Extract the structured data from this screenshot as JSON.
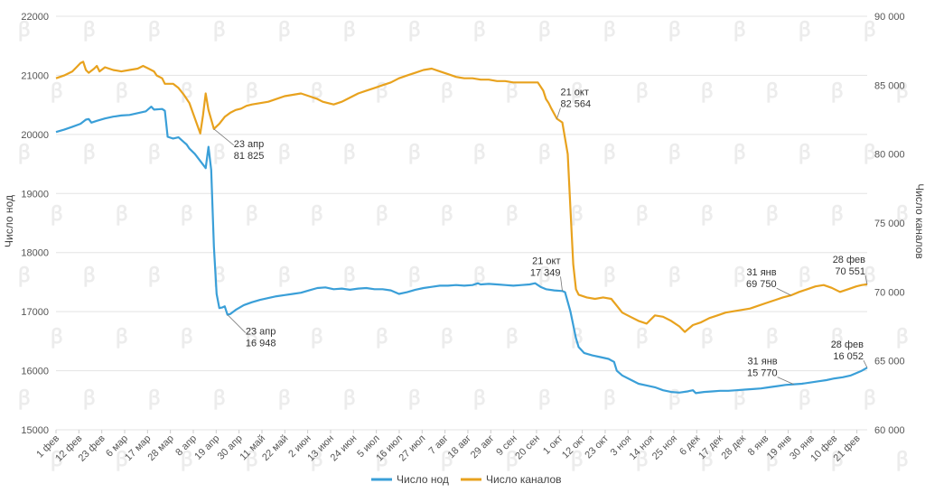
{
  "chart_data": {
    "type": "line",
    "title": "",
    "left_axis_label": "Число нод",
    "right_axis_label": "Число каналов",
    "left_ylim": [
      15000,
      22000
    ],
    "left_ticks": [
      "15000",
      "16000",
      "17000",
      "18000",
      "19000",
      "20000",
      "21000",
      "22000"
    ],
    "right_ylim": [
      60000,
      90000
    ],
    "right_ticks": [
      "60 000",
      "65 000",
      "70 000",
      "75 000",
      "80 000",
      "85 000",
      "90 000"
    ],
    "x_ticks": [
      "1 фев",
      "12 фев",
      "23 фев",
      "6 мар",
      "17 мар",
      "28 мар",
      "8 апр",
      "19 апр",
      "30 апр",
      "11 май",
      "22 май",
      "2 июн",
      "13 июн",
      "24 июн",
      "5 июл",
      "16 июл",
      "27 июл",
      "7 авг",
      "18 авг",
      "29 авг",
      "9 сен",
      "20 сен",
      "1 окт",
      "12 окт",
      "23 окт",
      "3 ноя",
      "14 ноя",
      "25 ноя",
      "6 дек",
      "17 дек",
      "28 дек",
      "8 янв",
      "19 янв",
      "30 янв",
      "10 фев",
      "21 фев"
    ],
    "grid": true,
    "legend_position": "bottom",
    "series": [
      {
        "name": "Число нод",
        "axis": "left",
        "color": "#3a9fd8",
        "points": [
          [
            0,
            20040
          ],
          [
            3,
            20080
          ],
          [
            6,
            20130
          ],
          [
            9,
            20180
          ],
          [
            11,
            20250
          ],
          [
            12,
            20260
          ],
          [
            13,
            20200
          ],
          [
            15,
            20230
          ],
          [
            18,
            20270
          ],
          [
            21,
            20300
          ],
          [
            24,
            20320
          ],
          [
            27,
            20330
          ],
          [
            30,
            20360
          ],
          [
            33,
            20390
          ],
          [
            35,
            20470
          ],
          [
            36,
            20420
          ],
          [
            39,
            20430
          ],
          [
            40,
            20400
          ],
          [
            41,
            19960
          ],
          [
            43,
            19930
          ],
          [
            45,
            19950
          ],
          [
            47,
            19870
          ],
          [
            48,
            19830
          ],
          [
            49,
            19760
          ],
          [
            51,
            19670
          ],
          [
            53,
            19550
          ],
          [
            55,
            19430
          ],
          [
            56,
            19790
          ],
          [
            57,
            19400
          ],
          [
            58,
            18100
          ],
          [
            59,
            17300
          ],
          [
            60,
            17060
          ],
          [
            61,
            17070
          ],
          [
            62,
            17090
          ],
          [
            63,
            16948
          ],
          [
            64,
            16960
          ],
          [
            66,
            17030
          ],
          [
            69,
            17110
          ],
          [
            72,
            17160
          ],
          [
            75,
            17200
          ],
          [
            78,
            17230
          ],
          [
            81,
            17260
          ],
          [
            84,
            17280
          ],
          [
            87,
            17300
          ],
          [
            90,
            17320
          ],
          [
            93,
            17360
          ],
          [
            96,
            17400
          ],
          [
            99,
            17410
          ],
          [
            102,
            17380
          ],
          [
            105,
            17390
          ],
          [
            108,
            17370
          ],
          [
            111,
            17390
          ],
          [
            114,
            17400
          ],
          [
            117,
            17380
          ],
          [
            120,
            17380
          ],
          [
            123,
            17360
          ],
          [
            126,
            17300
          ],
          [
            129,
            17330
          ],
          [
            132,
            17370
          ],
          [
            135,
            17400
          ],
          [
            138,
            17420
          ],
          [
            141,
            17440
          ],
          [
            144,
            17440
          ],
          [
            147,
            17450
          ],
          [
            150,
            17440
          ],
          [
            153,
            17450
          ],
          [
            155,
            17480
          ],
          [
            156,
            17460
          ],
          [
            159,
            17470
          ],
          [
            162,
            17460
          ],
          [
            165,
            17450
          ],
          [
            168,
            17440
          ],
          [
            171,
            17450
          ],
          [
            174,
            17460
          ],
          [
            176,
            17480
          ],
          [
            178,
            17420
          ],
          [
            180,
            17380
          ],
          [
            183,
            17360
          ],
          [
            186,
            17349
          ],
          [
            187,
            17330
          ],
          [
            189,
            17000
          ],
          [
            191,
            16550
          ],
          [
            192,
            16400
          ],
          [
            194,
            16300
          ],
          [
            197,
            16260
          ],
          [
            200,
            16230
          ],
          [
            203,
            16200
          ],
          [
            205,
            16150
          ],
          [
            206,
            16000
          ],
          [
            208,
            15920
          ],
          [
            211,
            15850
          ],
          [
            214,
            15780
          ],
          [
            217,
            15750
          ],
          [
            220,
            15720
          ],
          [
            223,
            15670
          ],
          [
            226,
            15640
          ],
          [
            229,
            15630
          ],
          [
            232,
            15650
          ],
          [
            234,
            15670
          ],
          [
            235,
            15620
          ],
          [
            238,
            15640
          ],
          [
            241,
            15650
          ],
          [
            244,
            15660
          ],
          [
            247,
            15660
          ],
          [
            250,
            15670
          ],
          [
            253,
            15680
          ],
          [
            256,
            15690
          ],
          [
            259,
            15700
          ],
          [
            262,
            15720
          ],
          [
            265,
            15740
          ],
          [
            268,
            15760
          ],
          [
            271,
            15770
          ],
          [
            274,
            15780
          ],
          [
            277,
            15800
          ],
          [
            280,
            15820
          ],
          [
            283,
            15840
          ],
          [
            286,
            15870
          ],
          [
            289,
            15890
          ],
          [
            292,
            15920
          ],
          [
            294,
            15960
          ],
          [
            296,
            16000
          ],
          [
            298,
            16052
          ]
        ]
      },
      {
        "name": "Число каналов",
        "axis": "right",
        "color": "#e8a21e",
        "points": [
          [
            0,
            85500
          ],
          [
            3,
            85700
          ],
          [
            6,
            86000
          ],
          [
            8,
            86400
          ],
          [
            9,
            86600
          ],
          [
            10,
            86700
          ],
          [
            11,
            86100
          ],
          [
            12,
            85900
          ],
          [
            14,
            86200
          ],
          [
            15,
            86400
          ],
          [
            16,
            86000
          ],
          [
            18,
            86300
          ],
          [
            21,
            86100
          ],
          [
            24,
            86000
          ],
          [
            27,
            86100
          ],
          [
            30,
            86200
          ],
          [
            32,
            86400
          ],
          [
            34,
            86200
          ],
          [
            36,
            86000
          ],
          [
            37,
            85700
          ],
          [
            39,
            85500
          ],
          [
            40,
            85100
          ],
          [
            43,
            85100
          ],
          [
            45,
            84800
          ],
          [
            47,
            84300
          ],
          [
            49,
            83700
          ],
          [
            51,
            82600
          ],
          [
            53,
            81500
          ],
          [
            54,
            82800
          ],
          [
            55,
            84400
          ],
          [
            56,
            83200
          ],
          [
            58,
            81825
          ],
          [
            60,
            82200
          ],
          [
            62,
            82700
          ],
          [
            64,
            83000
          ],
          [
            66,
            83200
          ],
          [
            68,
            83300
          ],
          [
            70,
            83500
          ],
          [
            72,
            83600
          ],
          [
            75,
            83700
          ],
          [
            78,
            83800
          ],
          [
            81,
            84000
          ],
          [
            84,
            84200
          ],
          [
            87,
            84300
          ],
          [
            90,
            84400
          ],
          [
            93,
            84200
          ],
          [
            96,
            84000
          ],
          [
            98,
            83800
          ],
          [
            100,
            83700
          ],
          [
            102,
            83600
          ],
          [
            105,
            83800
          ],
          [
            108,
            84100
          ],
          [
            111,
            84400
          ],
          [
            114,
            84600
          ],
          [
            117,
            84800
          ],
          [
            120,
            85000
          ],
          [
            123,
            85200
          ],
          [
            126,
            85500
          ],
          [
            129,
            85700
          ],
          [
            132,
            85900
          ],
          [
            135,
            86100
          ],
          [
            138,
            86200
          ],
          [
            141,
            86000
          ],
          [
            144,
            85800
          ],
          [
            147,
            85600
          ],
          [
            150,
            85500
          ],
          [
            153,
            85500
          ],
          [
            156,
            85400
          ],
          [
            159,
            85400
          ],
          [
            162,
            85300
          ],
          [
            165,
            85300
          ],
          [
            168,
            85200
          ],
          [
            171,
            85200
          ],
          [
            174,
            85200
          ],
          [
            177,
            85200
          ],
          [
            179,
            84600
          ],
          [
            180,
            84000
          ],
          [
            181,
            83700
          ],
          [
            182,
            83300
          ],
          [
            184,
            82564
          ],
          [
            186,
            82300
          ],
          [
            188,
            80000
          ],
          [
            189,
            76000
          ],
          [
            190,
            72000
          ],
          [
            191,
            70200
          ],
          [
            192,
            69800
          ],
          [
            195,
            69600
          ],
          [
            198,
            69500
          ],
          [
            201,
            69600
          ],
          [
            204,
            69500
          ],
          [
            206,
            69000
          ],
          [
            208,
            68500
          ],
          [
            211,
            68200
          ],
          [
            214,
            67900
          ],
          [
            217,
            67700
          ],
          [
            220,
            68300
          ],
          [
            223,
            68200
          ],
          [
            226,
            67900
          ],
          [
            229,
            67500
          ],
          [
            231,
            67100
          ],
          [
            234,
            67600
          ],
          [
            237,
            67800
          ],
          [
            240,
            68100
          ],
          [
            243,
            68300
          ],
          [
            246,
            68500
          ],
          [
            249,
            68600
          ],
          [
            252,
            68700
          ],
          [
            255,
            68800
          ],
          [
            258,
            69000
          ],
          [
            261,
            69200
          ],
          [
            264,
            69400
          ],
          [
            267,
            69600
          ],
          [
            270,
            69750
          ],
          [
            273,
            70000
          ],
          [
            276,
            70200
          ],
          [
            279,
            70400
          ],
          [
            282,
            70500
          ],
          [
            285,
            70300
          ],
          [
            288,
            70000
          ],
          [
            291,
            70200
          ],
          [
            294,
            70400
          ],
          [
            296,
            70500
          ],
          [
            298,
            70551
          ]
        ]
      }
    ],
    "annotations": [
      {
        "series": 1,
        "x": 58,
        "lines": [
          "23 апр",
          "81 825"
        ]
      },
      {
        "series": 0,
        "x": 63,
        "lines": [
          "23 апр",
          "16 948"
        ]
      },
      {
        "series": 1,
        "x": 184,
        "lines": [
          "21 окт",
          "82 564"
        ]
      },
      {
        "series": 0,
        "x": 186,
        "lines": [
          "21 окт",
          "17 349"
        ]
      },
      {
        "series": 1,
        "x": 270,
        "lines": [
          "31 янв",
          "69 750"
        ]
      },
      {
        "series": 0,
        "x": 271,
        "lines": [
          "31 янв",
          "15 770"
        ]
      },
      {
        "series": 1,
        "x": 298,
        "lines": [
          "28 фев",
          "70 551"
        ]
      },
      {
        "series": 0,
        "x": 298,
        "lines": [
          "28 фев",
          "16 052"
        ]
      }
    ]
  }
}
